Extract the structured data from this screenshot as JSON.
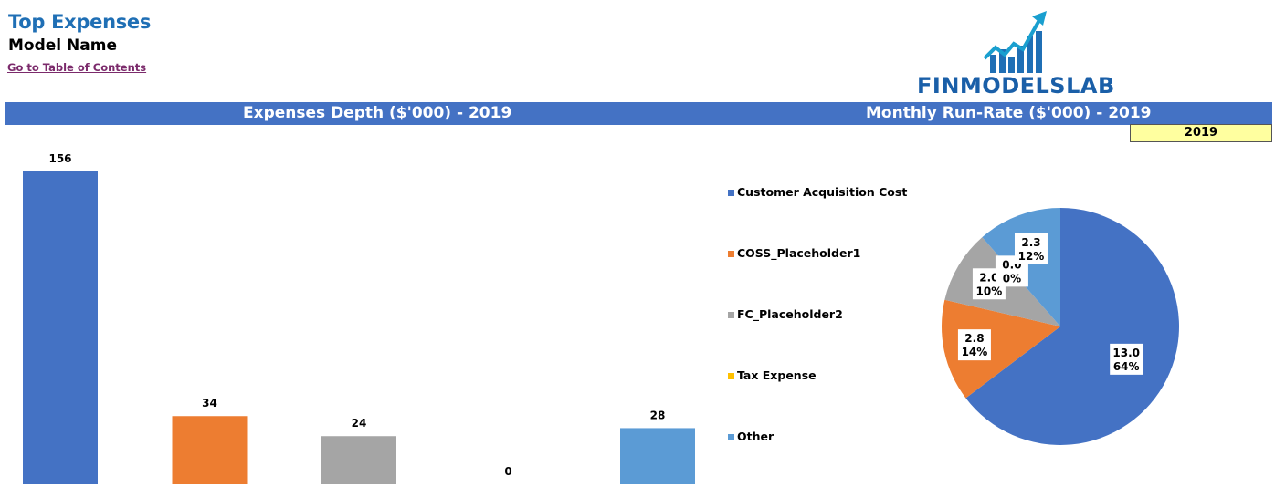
{
  "page": {
    "title": "Top Expenses",
    "subtitle": "Model Name",
    "toc_link": "Go to Table of Contents",
    "logo_text": "FINMODELSLAB",
    "year_badge": "2019"
  },
  "colors": {
    "header_bar": "#4472c4",
    "title": "#1f6fb5",
    "link": "#7b2a6b",
    "year_badge_bg": "#ffff9f"
  },
  "chart_data": [
    {
      "type": "bar",
      "title": "Expenses Depth ($'000) - 2019",
      "categories": [
        "Customer Acquisition Cost",
        "COSS_Placeholder1",
        "FC_Placeholder2",
        "Tax Expense",
        "Other"
      ],
      "values": [
        156,
        34,
        24,
        0,
        28
      ],
      "colors": [
        "#4472c4",
        "#ed7d31",
        "#a5a5a5",
        "#ffc000",
        "#5b9bd5"
      ],
      "data_labels": [
        "156",
        "34",
        "24",
        "0",
        "28"
      ],
      "ylim": [
        0,
        160
      ],
      "grid": false,
      "xlabel": "",
      "ylabel": ""
    },
    {
      "type": "pie",
      "title": "Monthly Run-Rate ($'000) - 2019",
      "labels": [
        "Customer Acquisition Cost",
        "COSS_Placeholder1",
        "FC_Placeholder2",
        "Tax Expense",
        "Other"
      ],
      "values": [
        13.0,
        2.8,
        2.0,
        0.0,
        2.3
      ],
      "percents": [
        "64%",
        "14%",
        "10%",
        "0%",
        "12%"
      ],
      "value_labels": [
        "13.0",
        "2.8",
        "2.0",
        "0.0",
        "2.3"
      ],
      "colors": [
        "#4472c4",
        "#ed7d31",
        "#a5a5a5",
        "#ffc000",
        "#5b9bd5"
      ],
      "legend_position": "left"
    }
  ]
}
